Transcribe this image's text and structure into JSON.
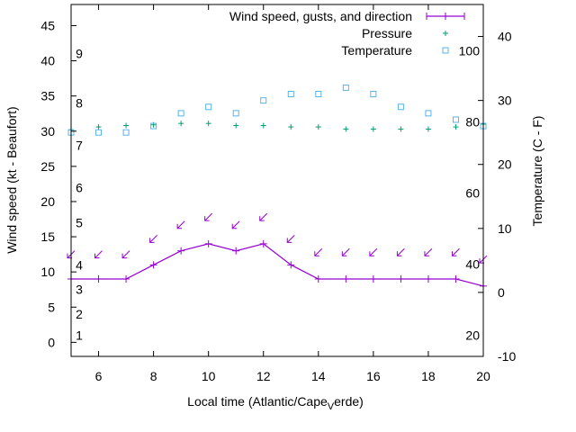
{
  "chart_data": {
    "type": "line",
    "x": [
      5,
      6,
      7,
      8,
      9,
      10,
      11,
      12,
      13,
      14,
      15,
      16,
      17,
      18,
      19,
      20
    ],
    "xlabel": "Local time (Atlantic/Cape",
    "xlabel_sub": "V",
    "xlabel_tail": "erde)",
    "ylabel_left": "Wind speed (kt - Beaufort)",
    "ylabel_right": "Temperature (C - F)",
    "xlim": [
      5,
      20
    ],
    "ylim_left": [
      -2,
      48
    ],
    "ylim_right": [
      -10,
      45
    ],
    "xticks": [
      "6",
      "8",
      "10",
      "12",
      "14",
      "16",
      "18",
      "20"
    ],
    "yticks_left": [
      "0",
      "5",
      "10",
      "15",
      "20",
      "25",
      "30",
      "35",
      "40",
      "45"
    ],
    "yticks_right": [
      "-10",
      "0",
      "10",
      "20",
      "30",
      "40"
    ],
    "beaufort_labels": [
      "1",
      "2",
      "3",
      "4",
      "5",
      "6",
      "7",
      "8",
      "9"
    ],
    "fahrenheit_labels": [
      "20",
      "40",
      "60",
      "80",
      "100"
    ],
    "series": [
      {
        "name": "Wind speed, gusts, and direction",
        "color": "#9400d3",
        "axis": "left",
        "values": [
          9,
          9,
          9,
          11,
          13,
          14,
          13,
          14,
          11,
          9,
          9,
          9,
          9,
          9,
          9,
          8
        ]
      },
      {
        "name": "Pressure",
        "color": "#009e73",
        "axis": "left",
        "values": [
          30.2,
          30.6,
          30.8,
          30.9,
          31.1,
          31.1,
          30.8,
          30.8,
          30.6,
          30.6,
          30.3,
          30.3,
          30.3,
          30.3,
          30.6,
          31.0
        ]
      },
      {
        "name": "Temperature",
        "color": "#56b4e9",
        "axis": "right",
        "values": [
          25,
          25,
          25,
          26,
          28,
          29,
          28,
          30,
          31,
          31,
          32,
          31,
          29,
          28,
          27,
          26
        ]
      }
    ],
    "wind_direction_arrows": {
      "color": "#9400d3",
      "values": [
        12.5,
        12.5,
        12.5,
        14.7,
        16.7,
        17.8,
        16.7,
        17.8,
        14.7,
        12.8,
        12.8,
        12.8,
        12.8,
        12.8,
        12.8,
        11.8
      ]
    },
    "legend_position": "top-right"
  }
}
